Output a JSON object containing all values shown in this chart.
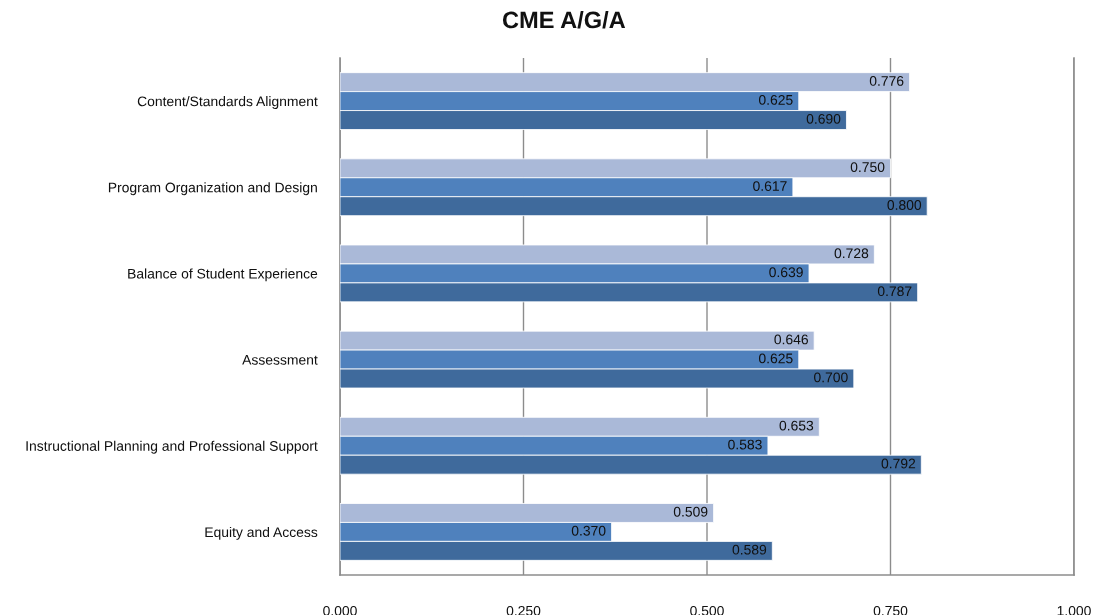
{
  "chart_data": {
    "type": "bar",
    "orientation": "horizontal",
    "title": "CME A/G/A",
    "categories": [
      "Content/Standards Alignment",
      "Program Organization and Design",
      "Balance of Student Experience",
      "Assessment",
      "Instructional Planning and Professional Support",
      "Equity and Access"
    ],
    "series": [
      {
        "color": "#aab9d8",
        "values": [
          0.776,
          0.75,
          0.728,
          0.646,
          0.653,
          0.509
        ],
        "value_labels": [
          "0.776",
          "0.750",
          "0.728",
          "0.646",
          "0.653",
          "0.509"
        ]
      },
      {
        "color": "#4f81bd",
        "values": [
          0.625,
          0.617,
          0.639,
          0.625,
          0.583,
          0.37
        ],
        "value_labels": [
          "0.625",
          "0.617",
          "0.639",
          "0.625",
          "0.583",
          "0.370"
        ]
      },
      {
        "color": "#3f6a9c",
        "values": [
          0.69,
          0.8,
          0.787,
          0.7,
          0.792,
          0.589
        ],
        "value_labels": [
          "0.690",
          "0.800",
          "0.787",
          "0.700",
          "0.792",
          "0.589"
        ]
      }
    ],
    "xlim": [
      0,
      1
    ],
    "xticks": [
      {
        "value": 0,
        "label": "0.000"
      },
      {
        "value": 0.25,
        "label": "0.250"
      },
      {
        "value": 0.5,
        "label": "0.500"
      },
      {
        "value": 0.75,
        "label": "0.750"
      },
      {
        "value": 1,
        "label": "1.000"
      }
    ],
    "grid": "x",
    "legend": false
  }
}
